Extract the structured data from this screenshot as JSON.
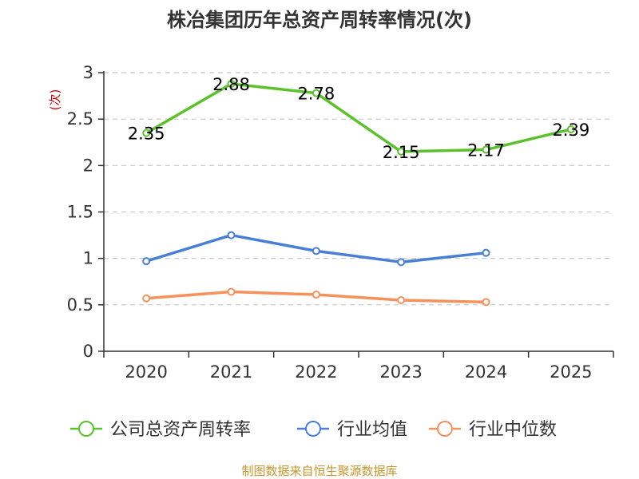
{
  "chart_data": {
    "type": "line",
    "title": "株冶集团历年总资产周转率情况(次)",
    "ylabel": "(次)",
    "categories": [
      "2020",
      "2021",
      "2022",
      "2023",
      "2024",
      "2025"
    ],
    "ylim": [
      0,
      3
    ],
    "yticks": [
      "0",
      "0.5",
      "1",
      "1.5",
      "2",
      "2.5",
      "3"
    ],
    "grid": true,
    "legend_position": "bottom",
    "series": [
      {
        "name": "公司总资产周转率",
        "color": "#5cc22c",
        "values": [
          2.35,
          2.88,
          2.78,
          2.15,
          2.17,
          2.39
        ],
        "labels": [
          "2.35",
          "2.88",
          "2.78",
          "2.15",
          "2.17",
          "2.39"
        ]
      },
      {
        "name": "行业均值",
        "color": "#4a7fd6",
        "values": [
          0.97,
          1.25,
          1.08,
          0.96,
          1.06,
          null
        ]
      },
      {
        "name": "行业中位数",
        "color": "#f5925c",
        "values": [
          0.57,
          0.64,
          0.61,
          0.55,
          0.53,
          null
        ]
      }
    ]
  },
  "source_note": "制图数据来自恒生聚源数据库"
}
